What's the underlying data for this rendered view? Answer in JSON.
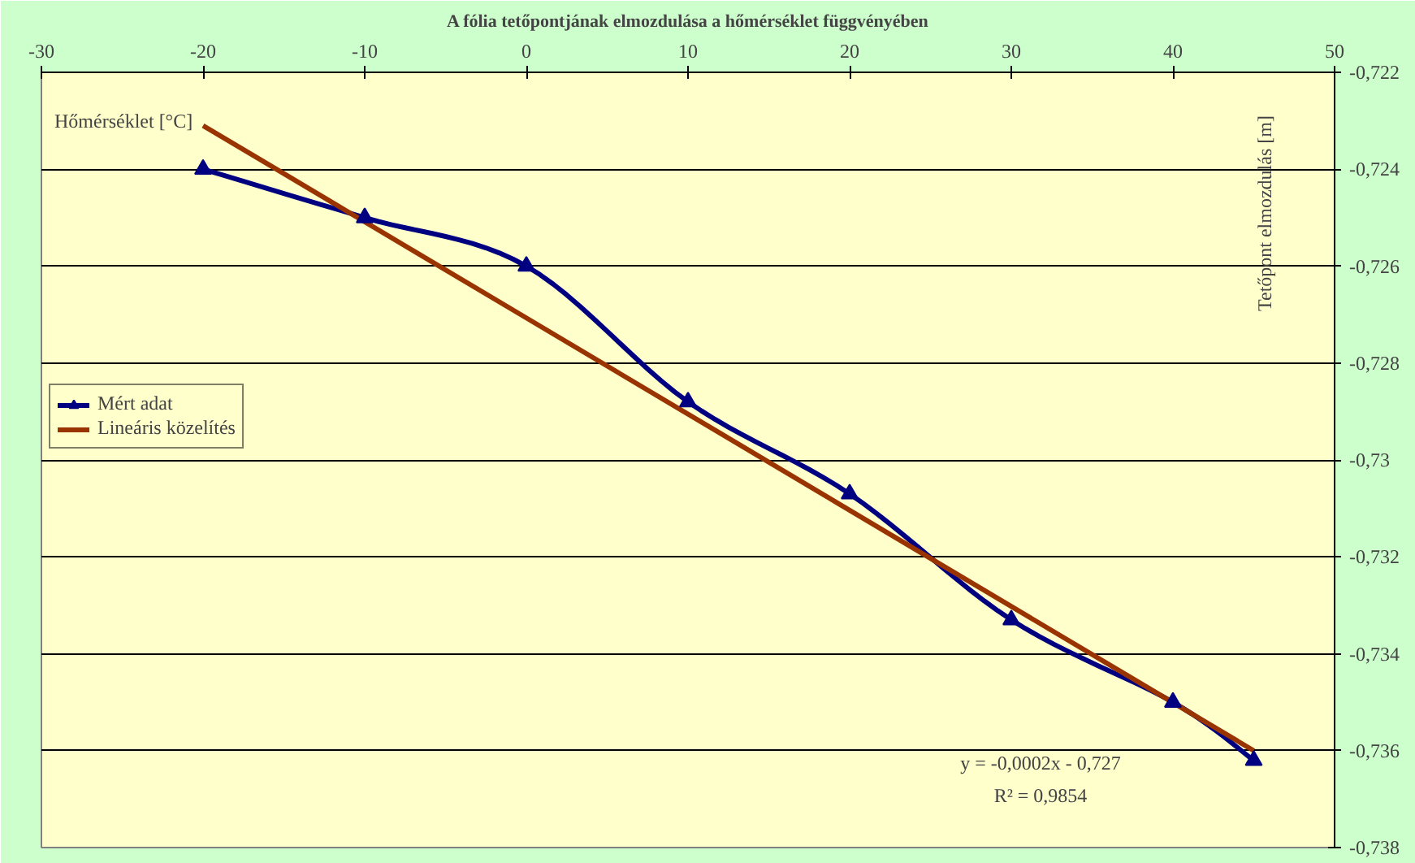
{
  "chart_data": {
    "type": "line",
    "title": "A fólia tetőpontjának elmozdulása a hőmérséklet függvényében",
    "xlabel": "Hőmérséklet [°C]",
    "ylabel": "Tetőpont elmozdulás [m]",
    "x": [
      -20,
      -10,
      0,
      10,
      20,
      30,
      40,
      45
    ],
    "series": [
      {
        "name": "Mért adat",
        "color": "#000080",
        "values": [
          -0.724,
          -0.725,
          -0.726,
          -0.7288,
          -0.7307,
          -0.7333,
          -0.735,
          -0.7362
        ],
        "marker": "triangle"
      },
      {
        "name": "Lineáris közelítés",
        "color": "#993300",
        "x": [
          -20,
          45
        ],
        "values": [
          -0.7231,
          -0.736
        ],
        "marker": "none"
      }
    ],
    "xlim": [
      -30,
      50
    ],
    "xticks": [
      -30,
      -20,
      -10,
      0,
      10,
      20,
      30,
      40,
      50
    ],
    "ylim": [
      -0.738,
      -0.722
    ],
    "yticks": [
      {
        "value": -0.722,
        "label": "-0,722"
      },
      {
        "value": -0.724,
        "label": "-0,724"
      },
      {
        "value": -0.726,
        "label": "-0,726"
      },
      {
        "value": -0.728,
        "label": "-0,728"
      },
      {
        "value": -0.73,
        "label": "-0,73"
      },
      {
        "value": -0.732,
        "label": "-0,732"
      },
      {
        "value": -0.734,
        "label": "-0,734"
      },
      {
        "value": -0.736,
        "label": "-0,736"
      },
      {
        "value": -0.738,
        "label": "-0,738"
      }
    ],
    "grid": "y",
    "legend": "left",
    "annotations": [
      "y = -0,0002x - 0,727",
      "R² = 0,9854"
    ]
  }
}
